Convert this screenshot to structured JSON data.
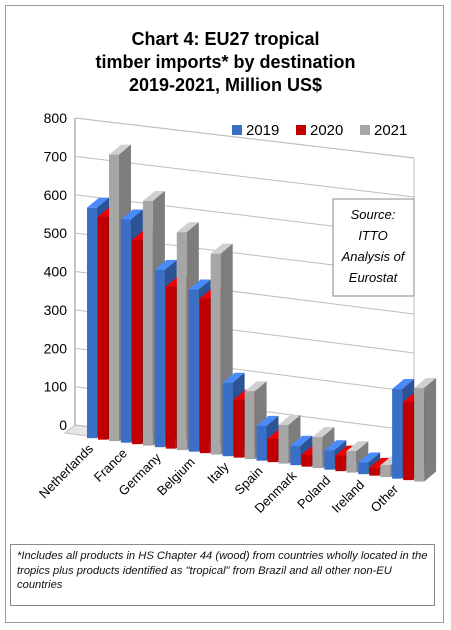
{
  "header": {
    "line1": "Chart 4: EU27 tropical",
    "line2": "timber imports* by destination",
    "line3": "2019-2021, Million US$"
  },
  "source_box": {
    "line1": "Source:",
    "line2": "ITTO",
    "line3": "Analysis of",
    "line4": "Eurostat"
  },
  "footnote": "*Includes all products in HS Chapter 44 (wood) from countries wholly located in the tropics plus products identified as \"tropical\" from Brazil and all other non-EU countries",
  "colors": {
    "2019": "#3a6fc8",
    "2020": "#c00000",
    "2021": "#a6a6a6"
  },
  "chart_data": {
    "type": "bar",
    "title": "Chart 4: EU27 tropical timber imports* by destination 2019-2021, Million US$",
    "categories": [
      "Netherlands",
      "France",
      "Germany",
      "Belgium",
      "Italy",
      "Spain",
      "Denmark",
      "Poland",
      "Ireland",
      "Other"
    ],
    "series": [
      {
        "name": "2019",
        "values": [
          600,
          580,
          460,
          420,
          190,
          90,
          50,
          50,
          30,
          230
        ]
      },
      {
        "name": "2020",
        "values": [
          580,
          530,
          420,
          400,
          150,
          60,
          30,
          40,
          20,
          200
        ]
      },
      {
        "name": "2021",
        "values": [
          745,
          635,
          565,
          520,
          175,
          100,
          80,
          55,
          30,
          240
        ]
      }
    ],
    "ylim": [
      0,
      800
    ],
    "yticks": [
      0,
      100,
      200,
      300,
      400,
      500,
      600,
      700,
      800
    ],
    "grid": true,
    "legend": "top-right"
  }
}
